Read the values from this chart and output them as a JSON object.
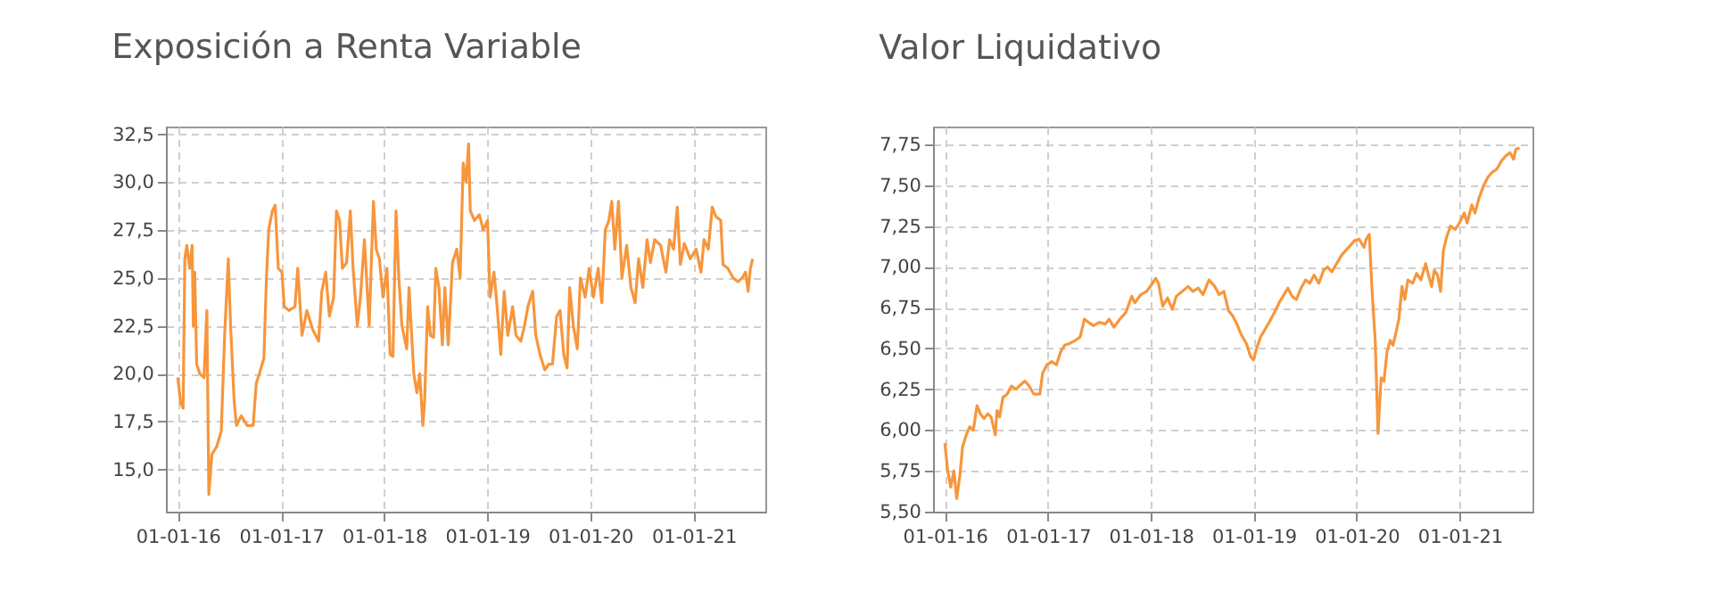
{
  "chart_data": [
    {
      "type": "line",
      "title": "Exposición a Renta Variable",
      "grid": true,
      "xlim": [
        "2015-11-20",
        "2021-09-12"
      ],
      "ylim": [
        12.8,
        32.9
      ],
      "xticks": [
        {
          "value": "2016-01-01",
          "label": "01-01-16"
        },
        {
          "value": "2017-01-01",
          "label": "01-01-17"
        },
        {
          "value": "2018-01-01",
          "label": "01-01-18"
        },
        {
          "value": "2019-01-01",
          "label": "01-01-19"
        },
        {
          "value": "2020-01-01",
          "label": "01-01-20"
        },
        {
          "value": "2021-01-01",
          "label": "01-01-21"
        }
      ],
      "yticks": [
        {
          "value": 15,
          "label": "15,0"
        },
        {
          "value": 17.5,
          "label": "17,5"
        },
        {
          "value": 20,
          "label": "20,0"
        },
        {
          "value": 22.5,
          "label": "22,5"
        },
        {
          "value": 25,
          "label": "25,0"
        },
        {
          "value": 27.5,
          "label": "27,5"
        },
        {
          "value": 30,
          "label": "30,0"
        },
        {
          "value": 32.5,
          "label": "32,5"
        }
      ],
      "x": [
        "2016-01-01",
        "2016-01-11",
        "2016-01-20",
        "2016-01-26",
        "2016-02-02",
        "2016-02-12",
        "2016-02-21",
        "2016-02-25",
        "2016-03-01",
        "2016-03-08",
        "2016-03-19",
        "2016-04-03",
        "2016-04-13",
        "2016-04-20",
        "2016-05-01",
        "2016-05-18",
        "2016-06-03",
        "2016-06-15",
        "2016-06-28",
        "2016-07-06",
        "2016-07-19",
        "2016-07-27",
        "2016-08-13",
        "2016-09-03",
        "2016-09-24",
        "2016-10-05",
        "2016-10-16",
        "2016-11-01",
        "2016-11-10",
        "2016-11-18",
        "2016-12-01",
        "2016-12-11",
        "2016-12-22",
        "2017-01-04",
        "2017-01-12",
        "2017-01-29",
        "2017-02-19",
        "2017-03-01",
        "2017-03-16",
        "2017-04-02",
        "2017-04-23",
        "2017-05-14",
        "2017-05-25",
        "2017-06-08",
        "2017-06-21",
        "2017-07-06",
        "2017-07-16",
        "2017-07-27",
        "2017-08-06",
        "2017-08-21",
        "2017-09-03",
        "2017-09-13",
        "2017-09-28",
        "2017-10-09",
        "2017-10-23",
        "2017-11-09",
        "2017-11-24",
        "2017-12-04",
        "2017-12-15",
        "2017-12-28",
        "2018-01-11",
        "2018-01-22",
        "2018-02-01",
        "2018-02-12",
        "2018-02-22",
        "2018-03-05",
        "2018-03-22",
        "2018-03-30",
        "2018-04-16",
        "2018-04-27",
        "2018-05-07",
        "2018-05-18",
        "2018-05-24",
        "2018-06-04",
        "2018-06-14",
        "2018-06-25",
        "2018-07-03",
        "2018-07-14",
        "2018-07-26",
        "2018-08-04",
        "2018-08-16",
        "2018-08-31",
        "2018-09-15",
        "2018-09-27",
        "2018-10-08",
        "2018-10-18",
        "2018-10-27",
        "2018-11-02",
        "2018-11-17",
        "2018-12-04",
        "2018-12-18",
        "2019-01-02",
        "2019-01-11",
        "2019-01-25",
        "2019-02-05",
        "2019-02-18",
        "2019-03-02",
        "2019-03-15",
        "2019-04-01",
        "2019-04-13",
        "2019-04-30",
        "2019-05-13",
        "2019-05-25",
        "2019-06-11",
        "2019-06-22",
        "2019-07-07",
        "2019-07-24",
        "2019-08-07",
        "2019-08-20",
        "2019-09-04",
        "2019-09-16",
        "2019-09-29",
        "2019-10-11",
        "2019-10-20",
        "2019-11-02",
        "2019-11-16",
        "2019-11-27",
        "2019-12-14",
        "2019-12-28",
        "2020-01-12",
        "2020-01-29",
        "2020-02-11",
        "2020-02-23",
        "2020-03-07",
        "2020-03-17",
        "2020-03-28",
        "2020-04-10",
        "2020-04-22",
        "2020-05-09",
        "2020-05-24",
        "2020-06-08",
        "2020-06-20",
        "2020-07-05",
        "2020-07-20",
        "2020-08-01",
        "2020-08-16",
        "2020-09-06",
        "2020-09-25",
        "2020-10-08",
        "2020-10-22",
        "2020-11-04",
        "2020-11-15",
        "2020-11-29",
        "2020-12-20",
        "2021-01-10",
        "2021-01-27",
        "2021-02-07",
        "2021-02-22",
        "2021-03-08",
        "2021-03-21",
        "2021-04-07",
        "2021-04-15",
        "2021-05-02",
        "2021-05-21",
        "2021-06-07",
        "2021-06-22",
        "2021-07-04",
        "2021-07-13",
        "2021-07-21",
        "2021-07-29"
      ],
      "series": [
        {
          "color": "#f7963c",
          "values": [
            19.8,
            18.5,
            18.2,
            26.0,
            26.7,
            25.5,
            26.7,
            22.5,
            25.3,
            20.5,
            20.0,
            19.8,
            23.3,
            13.7,
            15.8,
            16.2,
            17.0,
            22.0,
            26.0,
            22.5,
            18.5,
            17.3,
            17.8,
            17.3,
            17.3,
            19.5,
            20.0,
            20.8,
            25.0,
            27.5,
            28.5,
            28.8,
            25.5,
            25.3,
            23.5,
            23.3,
            23.5,
            25.5,
            22.0,
            23.3,
            22.3,
            21.7,
            24.3,
            25.3,
            23.0,
            24.0,
            28.5,
            28.0,
            25.5,
            25.8,
            28.5,
            25.5,
            22.5,
            24.0,
            27.0,
            22.5,
            29.0,
            26.5,
            26.0,
            24.0,
            25.5,
            21.0,
            20.9,
            28.5,
            25.0,
            22.5,
            21.3,
            24.5,
            20.0,
            19.0,
            20.0,
            17.3,
            18.5,
            23.5,
            22.0,
            21.9,
            25.5,
            24.5,
            21.5,
            24.5,
            21.5,
            25.8,
            26.5,
            25.0,
            31.0,
            30.0,
            32.0,
            28.5,
            28.0,
            28.3,
            27.5,
            28.0,
            24.0,
            25.3,
            23.5,
            21.0,
            24.3,
            22.0,
            23.5,
            22.0,
            21.7,
            22.5,
            23.5,
            24.3,
            22.0,
            21.0,
            20.2,
            20.5,
            20.5,
            23.0,
            23.3,
            21.0,
            20.3,
            24.5,
            22.5,
            21.3,
            25.0,
            24.0,
            25.5,
            24.0,
            25.5,
            23.7,
            27.5,
            28.0,
            29.0,
            26.5,
            29.0,
            25.0,
            26.7,
            24.5,
            23.7,
            26.0,
            24.5,
            27.0,
            25.8,
            27.0,
            26.7,
            25.3,
            27.0,
            26.5,
            28.7,
            25.7,
            26.8,
            26.0,
            26.5,
            25.3,
            27.0,
            26.5,
            28.7,
            28.2,
            28.0,
            25.7,
            25.5,
            25.0,
            24.8,
            25.0,
            25.3,
            24.3,
            25.5,
            26.0
          ]
        }
      ]
    },
    {
      "type": "line",
      "title": "Valor Liquidativo",
      "grid": true,
      "xlim": [
        "2015-11-20",
        "2021-09-16"
      ],
      "ylim": [
        5.5,
        7.86
      ],
      "xticks": [
        {
          "value": "2016-01-01",
          "label": "01-01-16"
        },
        {
          "value": "2017-01-01",
          "label": "01-01-17"
        },
        {
          "value": "2018-01-01",
          "label": "01-01-18"
        },
        {
          "value": "2019-01-01",
          "label": "01-01-19"
        },
        {
          "value": "2020-01-01",
          "label": "01-01-20"
        },
        {
          "value": "2021-01-01",
          "label": "01-01-21"
        }
      ],
      "yticks": [
        {
          "value": 5.5,
          "label": "5,50"
        },
        {
          "value": 5.75,
          "label": "5,75"
        },
        {
          "value": 6,
          "label": "6,00"
        },
        {
          "value": 6.25,
          "label": "6,25"
        },
        {
          "value": 6.5,
          "label": "6,50"
        },
        {
          "value": 6.75,
          "label": "6,75"
        },
        {
          "value": 7,
          "label": "7,00"
        },
        {
          "value": 7.25,
          "label": "7,25"
        },
        {
          "value": 7.5,
          "label": "7,50"
        },
        {
          "value": 7.75,
          "label": "7,75"
        }
      ],
      "x": [
        "2016-01-01",
        "2016-01-11",
        "2016-01-22",
        "2016-02-02",
        "2016-02-12",
        "2016-02-23",
        "2016-03-04",
        "2016-03-19",
        "2016-03-29",
        "2016-04-11",
        "2016-04-24",
        "2016-05-06",
        "2016-05-19",
        "2016-06-01",
        "2016-06-13",
        "2016-06-28",
        "2016-07-04",
        "2016-07-13",
        "2016-07-25",
        "2016-08-09",
        "2016-08-24",
        "2016-09-10",
        "2016-09-27",
        "2016-10-11",
        "2016-10-26",
        "2016-11-12",
        "2016-12-03",
        "2016-12-13",
        "2016-12-28",
        "2017-01-14",
        "2017-01-31",
        "2017-02-15",
        "2017-03-01",
        "2017-03-18",
        "2017-04-08",
        "2017-04-25",
        "2017-05-10",
        "2017-05-25",
        "2017-06-11",
        "2017-07-02",
        "2017-07-23",
        "2017-08-06",
        "2017-08-23",
        "2017-09-13",
        "2017-10-04",
        "2017-10-25",
        "2017-11-05",
        "2017-11-26",
        "2017-12-17",
        "2018-01-07",
        "2018-01-18",
        "2018-01-28",
        "2018-02-12",
        "2018-03-01",
        "2018-03-18",
        "2018-04-01",
        "2018-04-22",
        "2018-05-13",
        "2018-05-30",
        "2018-06-18",
        "2018-07-05",
        "2018-07-26",
        "2018-08-16",
        "2018-08-31",
        "2018-09-17",
        "2018-10-04",
        "2018-10-18",
        "2018-11-02",
        "2018-11-19",
        "2018-12-06",
        "2018-12-21",
        "2018-12-31",
        "2019-01-11",
        "2019-01-25",
        "2019-02-11",
        "2019-02-28",
        "2019-03-15",
        "2019-04-01",
        "2019-04-15",
        "2019-05-02",
        "2019-05-17",
        "2019-06-01",
        "2019-06-18",
        "2019-07-04",
        "2019-07-19",
        "2019-08-03",
        "2019-08-20",
        "2019-09-06",
        "2019-09-20",
        "2019-10-05",
        "2019-10-22",
        "2019-11-08",
        "2019-11-23",
        "2019-12-09",
        "2019-12-24",
        "2020-01-10",
        "2020-01-27",
        "2020-02-04",
        "2020-02-15",
        "2020-02-25",
        "2020-03-07",
        "2020-03-17",
        "2020-03-28",
        "2020-04-07",
        "2020-04-18",
        "2020-04-29",
        "2020-05-09",
        "2020-05-20",
        "2020-05-30",
        "2020-06-10",
        "2020-06-20",
        "2020-07-01",
        "2020-07-18",
        "2020-08-01",
        "2020-08-16",
        "2020-09-02",
        "2020-09-12",
        "2020-09-23",
        "2020-10-03",
        "2020-10-14",
        "2020-10-25",
        "2020-11-04",
        "2020-11-15",
        "2020-11-29",
        "2020-12-16",
        "2020-12-31",
        "2021-01-17",
        "2021-01-27",
        "2021-02-13",
        "2021-02-24",
        "2021-03-10",
        "2021-03-27",
        "2021-04-11",
        "2021-04-26",
        "2021-05-13",
        "2021-05-29",
        "2021-06-13",
        "2021-06-28",
        "2021-07-11",
        "2021-07-19",
        "2021-08-01"
      ],
      "series": [
        {
          "color": "#f7963c",
          "values": [
            5.92,
            5.75,
            5.65,
            5.75,
            5.58,
            5.72,
            5.9,
            5.98,
            6.02,
            6.0,
            6.15,
            6.1,
            6.07,
            6.1,
            6.08,
            5.97,
            6.12,
            6.08,
            6.2,
            6.22,
            6.27,
            6.25,
            6.28,
            6.3,
            6.27,
            6.22,
            6.22,
            6.35,
            6.4,
            6.42,
            6.4,
            6.48,
            6.52,
            6.53,
            6.55,
            6.57,
            6.68,
            6.66,
            6.64,
            6.66,
            6.65,
            6.68,
            6.63,
            6.68,
            6.72,
            6.82,
            6.78,
            6.83,
            6.85,
            6.9,
            6.93,
            6.9,
            6.76,
            6.81,
            6.74,
            6.82,
            6.85,
            6.88,
            6.85,
            6.87,
            6.83,
            6.92,
            6.88,
            6.83,
            6.85,
            6.73,
            6.7,
            6.65,
            6.58,
            6.53,
            6.45,
            6.43,
            6.5,
            6.57,
            6.62,
            6.67,
            6.72,
            6.78,
            6.82,
            6.87,
            6.82,
            6.8,
            6.87,
            6.92,
            6.9,
            6.95,
            6.9,
            6.98,
            7.0,
            6.97,
            7.02,
            7.07,
            7.1,
            7.13,
            7.16,
            7.17,
            7.12,
            7.17,
            7.2,
            6.85,
            6.55,
            5.98,
            6.32,
            6.3,
            6.48,
            6.55,
            6.52,
            6.6,
            6.68,
            6.88,
            6.8,
            6.92,
            6.9,
            6.96,
            6.92,
            7.02,
            6.95,
            6.88,
            6.98,
            6.95,
            6.85,
            7.1,
            7.18,
            7.25,
            7.23,
            7.27,
            7.33,
            7.27,
            7.38,
            7.33,
            7.42,
            7.5,
            7.55,
            7.58,
            7.6,
            7.65,
            7.68,
            7.7,
            7.66,
            7.72,
            7.73
          ]
        }
      ]
    }
  ]
}
